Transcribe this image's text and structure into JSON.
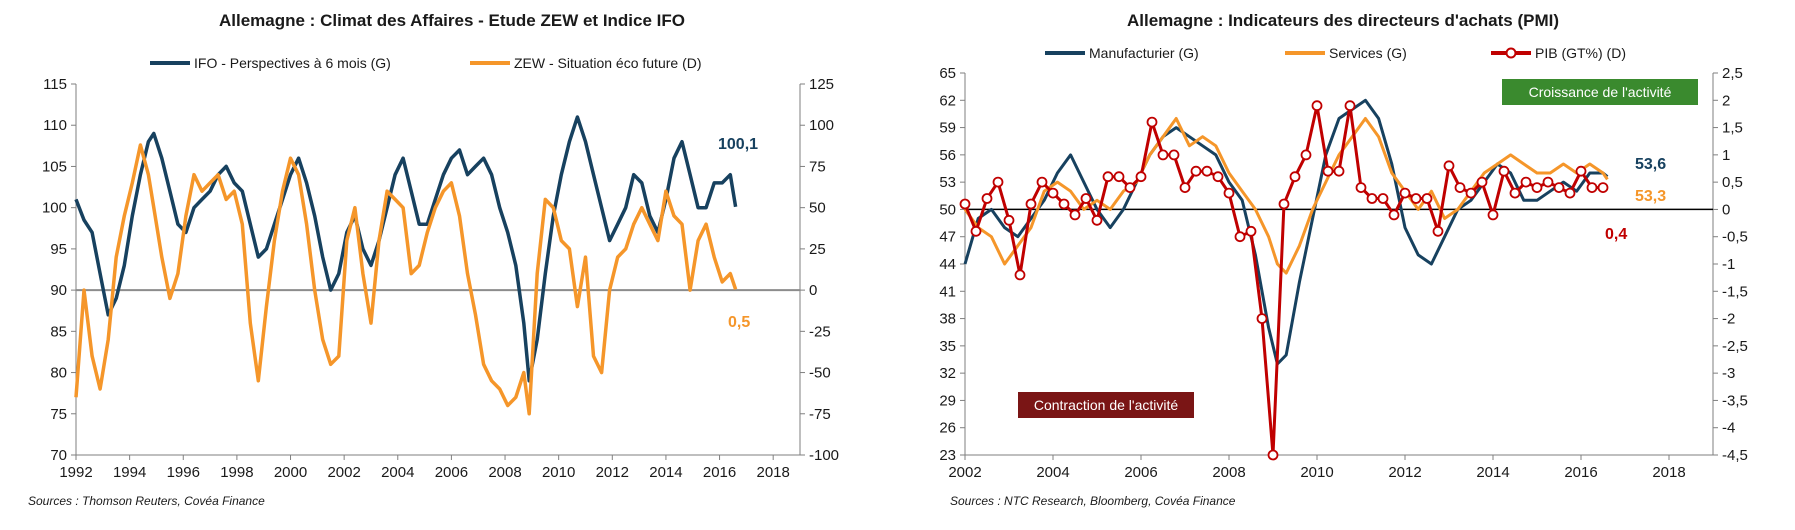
{
  "chart_data": [
    {
      "type": "line",
      "title": "Allemagne : Climat des Affaires - Etude ZEW et Indice IFO",
      "source": "Sources : Thomson Reuters, Covéa Finance",
      "x_ticks": [
        "1992",
        "1994",
        "1996",
        "1998",
        "2000",
        "2002",
        "2004",
        "2006",
        "2008",
        "2010",
        "2012",
        "2014",
        "2016",
        "2018"
      ],
      "y_left_ticks": [
        "115",
        "110",
        "105",
        "100",
        "95",
        "90",
        "85",
        "80",
        "75",
        "70"
      ],
      "y_right_ticks": [
        "125",
        "100",
        "75",
        "50",
        "25",
        "0",
        "-25",
        "-50",
        "-75",
        "-100"
      ],
      "xlim": [
        1992,
        2019
      ],
      "ylim_left": [
        70,
        115
      ],
      "ylim_right": [
        -100,
        125
      ],
      "zero_line_right": 0,
      "series": [
        {
          "name": "IFO - Perspectives à 6 mois (G)",
          "axis": "left",
          "color": "#17415f",
          "end_label": "100,1",
          "x": [
            1992.0,
            1992.3,
            1992.6,
            1992.9,
            1993.2,
            1993.5,
            1993.8,
            1994.1,
            1994.4,
            1994.7,
            1994.9,
            1995.2,
            1995.5,
            1995.8,
            1996.1,
            1996.4,
            1996.7,
            1997.0,
            1997.3,
            1997.6,
            1997.9,
            1998.2,
            1998.5,
            1998.8,
            1999.1,
            1999.4,
            1999.7,
            2000.0,
            2000.3,
            2000.6,
            2000.9,
            2001.2,
            2001.5,
            2001.8,
            2002.1,
            2002.4,
            2002.7,
            2003.0,
            2003.3,
            2003.6,
            2003.9,
            2004.2,
            2004.5,
            2004.8,
            2005.1,
            2005.4,
            2005.7,
            2006.0,
            2006.3,
            2006.6,
            2006.9,
            2007.2,
            2007.5,
            2007.8,
            2008.1,
            2008.4,
            2008.7,
            2008.9,
            2009.2,
            2009.5,
            2009.8,
            2010.1,
            2010.4,
            2010.7,
            2011.0,
            2011.3,
            2011.6,
            2011.9,
            2012.2,
            2012.5,
            2012.8,
            2013.1,
            2013.4,
            2013.7,
            2014.0,
            2014.3,
            2014.6,
            2014.9,
            2015.2,
            2015.5,
            2015.8,
            2016.1,
            2016.4,
            2016.6
          ],
          "values": [
            101,
            98.5,
            97,
            92,
            87,
            89,
            93,
            99,
            104,
            108,
            109,
            106,
            102,
            98,
            97,
            100,
            101,
            102,
            104,
            105,
            103,
            102,
            98,
            94,
            95,
            98,
            101,
            104,
            106,
            103,
            99,
            94,
            90,
            92,
            97,
            99,
            95,
            93,
            96,
            100,
            104,
            106,
            102,
            98,
            98,
            101,
            104,
            106,
            107,
            104,
            105,
            106,
            104,
            100,
            97,
            93,
            86,
            79,
            84,
            92,
            99,
            104,
            108,
            111,
            108,
            104,
            100,
            96,
            98,
            100,
            104,
            103,
            99,
            97,
            101,
            106,
            108,
            104,
            100,
            100,
            103,
            103,
            104,
            100.1
          ]
        },
        {
          "name": "ZEW - Situation éco future (D)",
          "axis": "right",
          "color": "#f5962a",
          "end_label": "0,5",
          "x": [
            1992.0,
            1992.3,
            1992.6,
            1992.9,
            1993.2,
            1993.5,
            1993.8,
            1994.1,
            1994.4,
            1994.7,
            1994.9,
            1995.2,
            1995.5,
            1995.8,
            1996.1,
            1996.4,
            1996.7,
            1997.0,
            1997.3,
            1997.6,
            1997.9,
            1998.2,
            1998.5,
            1998.8,
            1999.1,
            1999.4,
            1999.7,
            2000.0,
            2000.3,
            2000.6,
            2000.9,
            2001.2,
            2001.5,
            2001.8,
            2002.1,
            2002.4,
            2002.7,
            2003.0,
            2003.3,
            2003.6,
            2003.9,
            2004.2,
            2004.5,
            2004.8,
            2005.1,
            2005.4,
            2005.7,
            2006.0,
            2006.3,
            2006.6,
            2006.9,
            2007.2,
            2007.5,
            2007.8,
            2008.1,
            2008.4,
            2008.7,
            2008.9,
            2009.2,
            2009.5,
            2009.8,
            2010.1,
            2010.4,
            2010.7,
            2011.0,
            2011.3,
            2011.6,
            2011.9,
            2012.2,
            2012.5,
            2012.8,
            2013.1,
            2013.4,
            2013.7,
            2014.0,
            2014.3,
            2014.6,
            2014.9,
            2015.2,
            2015.5,
            2015.8,
            2016.1,
            2016.4,
            2016.6
          ],
          "values": [
            -65,
            0,
            -40,
            -60,
            -30,
            20,
            45,
            65,
            88,
            70,
            50,
            20,
            -5,
            10,
            45,
            70,
            60,
            65,
            70,
            55,
            60,
            40,
            -20,
            -55,
            -10,
            30,
            60,
            80,
            70,
            40,
            0,
            -30,
            -45,
            -40,
            30,
            50,
            10,
            -20,
            30,
            60,
            55,
            50,
            10,
            15,
            35,
            50,
            60,
            65,
            45,
            10,
            -15,
            -45,
            -55,
            -60,
            -70,
            -65,
            -50,
            -75,
            10,
            55,
            50,
            30,
            25,
            -10,
            20,
            -40,
            -50,
            0,
            20,
            25,
            40,
            50,
            40,
            30,
            60,
            45,
            40,
            0,
            30,
            40,
            20,
            5,
            10,
            0.5
          ]
        }
      ]
    },
    {
      "type": "line",
      "title": "Allemagne : Indicateurs des directeurs d'achats (PMI)",
      "source": "Sources : NTC Research, Bloomberg, Covéa Finance",
      "x_ticks": [
        "2002",
        "2004",
        "2006",
        "2008",
        "2010",
        "2012",
        "2014",
        "2016",
        "2018"
      ],
      "y_left_ticks": [
        "65",
        "62",
        "59",
        "56",
        "53",
        "50",
        "47",
        "44",
        "41",
        "38",
        "35",
        "32",
        "29",
        "26",
        "23"
      ],
      "y_right_ticks": [
        "2,5",
        "2",
        "1,5",
        "1",
        "0,5",
        "0",
        "-0,5",
        "-1",
        "-1,5",
        "-2",
        "-2,5",
        "-3",
        "-3,5",
        "-4",
        "-4,5"
      ],
      "xlim": [
        2002,
        2019
      ],
      "ylim_left": [
        23,
        65
      ],
      "ylim_right": [
        -4.5,
        2.5
      ],
      "zero_line_right": 0,
      "annotations": [
        {
          "text": "Croissance de l'activité",
          "color": "#3a8a2e"
        },
        {
          "text": "Contraction de l'activité",
          "color": "#7a1515"
        }
      ],
      "series": [
        {
          "name": "Manufacturier (G)",
          "axis": "left",
          "color": "#17415f",
          "end_label": "53,6",
          "x": [
            2002.0,
            2002.3,
            2002.6,
            2002.9,
            2003.2,
            2003.5,
            2003.8,
            2004.1,
            2004.4,
            2004.7,
            2005.0,
            2005.3,
            2005.6,
            2005.9,
            2006.2,
            2006.5,
            2006.8,
            2007.1,
            2007.4,
            2007.7,
            2008.0,
            2008.3,
            2008.6,
            2008.9,
            2009.1,
            2009.3,
            2009.6,
            2009.9,
            2010.2,
            2010.5,
            2010.8,
            2011.1,
            2011.4,
            2011.7,
            2012.0,
            2012.3,
            2012.6,
            2012.9,
            2013.2,
            2013.5,
            2013.8,
            2014.1,
            2014.4,
            2014.7,
            2015.0,
            2015.3,
            2015.6,
            2015.9,
            2016.2,
            2016.5,
            2016.6
          ],
          "values": [
            44,
            49,
            50,
            48,
            47,
            49,
            51,
            54,
            56,
            53,
            50,
            48,
            50,
            53,
            56,
            58,
            59,
            58,
            57,
            56,
            53,
            51,
            45,
            37,
            33,
            34,
            42,
            49,
            56,
            60,
            61,
            62,
            60,
            55,
            48,
            45,
            44,
            47,
            50,
            51,
            53,
            55,
            54,
            51,
            51,
            52,
            53,
            52,
            54,
            54,
            53.6
          ]
        },
        {
          "name": "Services (G)",
          "axis": "left",
          "color": "#f5962a",
          "end_label": "53,3",
          "x": [
            2002.0,
            2002.3,
            2002.6,
            2002.9,
            2003.2,
            2003.5,
            2003.8,
            2004.1,
            2004.4,
            2004.7,
            2005.0,
            2005.3,
            2005.6,
            2005.9,
            2006.2,
            2006.5,
            2006.8,
            2007.1,
            2007.4,
            2007.7,
            2008.0,
            2008.3,
            2008.6,
            2008.9,
            2009.1,
            2009.3,
            2009.6,
            2009.9,
            2010.2,
            2010.5,
            2010.8,
            2011.1,
            2011.4,
            2011.7,
            2012.0,
            2012.3,
            2012.6,
            2012.9,
            2013.2,
            2013.5,
            2013.8,
            2014.1,
            2014.4,
            2014.7,
            2015.0,
            2015.3,
            2015.6,
            2015.9,
            2016.2,
            2016.5,
            2016.6
          ],
          "values": [
            50,
            48,
            47,
            44,
            46,
            48,
            52,
            53,
            52,
            50,
            51,
            50,
            52,
            53,
            56,
            58,
            60,
            57,
            58,
            57,
            54,
            52,
            50,
            47,
            44,
            43,
            46,
            50,
            53,
            56,
            58,
            60,
            58,
            54,
            52,
            50,
            52,
            49,
            50,
            52,
            54,
            55,
            56,
            55,
            54,
            54,
            55,
            54,
            55,
            54,
            53.3
          ]
        },
        {
          "name": "PIB (GT%) (D)",
          "axis": "right",
          "color": "#c00000",
          "marker_fill": "#ffffff",
          "end_label": "0,4",
          "x": [
            2002.0,
            2002.25,
            2002.5,
            2002.75,
            2003.0,
            2003.25,
            2003.5,
            2003.75,
            2004.0,
            2004.25,
            2004.5,
            2004.75,
            2005.0,
            2005.25,
            2005.5,
            2005.75,
            2006.0,
            2006.25,
            2006.5,
            2006.75,
            2007.0,
            2007.25,
            2007.5,
            2007.75,
            2008.0,
            2008.25,
            2008.5,
            2008.75,
            2009.0,
            2009.25,
            2009.5,
            2009.75,
            2010.0,
            2010.25,
            2010.5,
            2010.75,
            2011.0,
            2011.25,
            2011.5,
            2011.75,
            2012.0,
            2012.25,
            2012.5,
            2012.75,
            2013.0,
            2013.25,
            2013.5,
            2013.75,
            2014.0,
            2014.25,
            2014.5,
            2014.75,
            2015.0,
            2015.25,
            2015.5,
            2015.75,
            2016.0,
            2016.25,
            2016.5
          ],
          "values": [
            0.1,
            -0.4,
            0.2,
            0.5,
            -0.2,
            -1.2,
            0.1,
            0.5,
            0.3,
            0.1,
            -0.1,
            0.2,
            -0.2,
            0.6,
            0.6,
            0.4,
            0.6,
            1.6,
            1.0,
            1.0,
            0.4,
            0.7,
            0.7,
            0.6,
            0.3,
            -0.5,
            -0.4,
            -2.0,
            -4.5,
            0.1,
            0.6,
            1.0,
            1.9,
            0.7,
            0.7,
            1.9,
            0.4,
            0.2,
            0.2,
            -0.1,
            0.3,
            0.2,
            0.2,
            -0.4,
            0.8,
            0.4,
            0.3,
            0.5,
            -0.1,
            0.7,
            0.3,
            0.5,
            0.4,
            0.5,
            0.4,
            0.3,
            0.7,
            0.4,
            0.4
          ]
        }
      ]
    }
  ]
}
